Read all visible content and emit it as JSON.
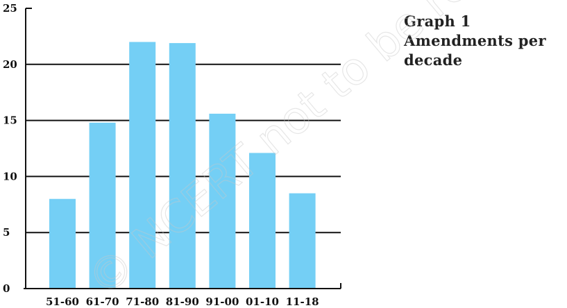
{
  "caption": {
    "line1": "Graph 1",
    "line2": "Amendments per",
    "line3": "decade"
  },
  "watermark": "© NCERT not to be republished",
  "colors": {
    "bar": "#74cff5",
    "axis": "#111111",
    "grid": "#111111"
  },
  "chart_data": {
    "type": "bar",
    "categories": [
      "51-60",
      "61-70",
      "71-80",
      "81-90",
      "91-00",
      "01-10",
      "11-18"
    ],
    "values": [
      8,
      14.8,
      22,
      21.9,
      15.6,
      12.1,
      8.5
    ],
    "title": "Graph 1 Amendments per decade",
    "xlabel": "",
    "ylabel": "",
    "ylim": [
      0,
      25
    ],
    "yticks": [
      0,
      5,
      10,
      15,
      20,
      25
    ],
    "grid": true,
    "legend": "none"
  }
}
